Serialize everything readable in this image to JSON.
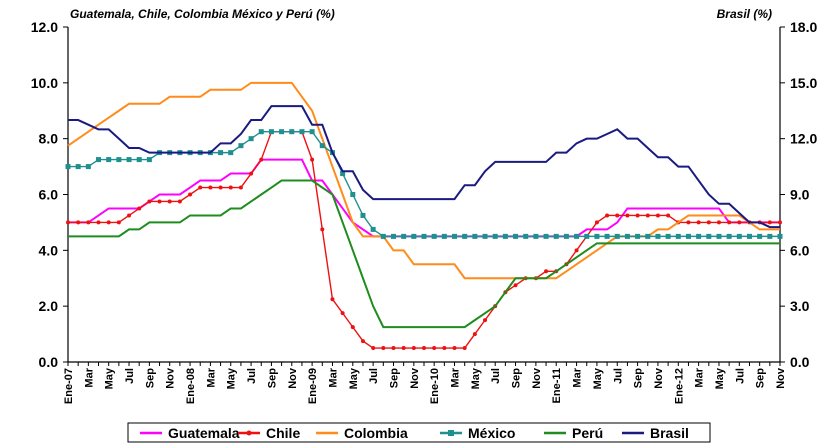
{
  "chart_data": {
    "type": "line",
    "title": "Guatemala, Chile, Colombia México y Perú (%)",
    "y2_title": "Brasil (%)",
    "categories": [
      "Ene-07",
      null,
      "Mar",
      null,
      "May",
      null,
      "Jul",
      null,
      "Sep",
      null,
      "Nov",
      null,
      "Ene-08",
      null,
      "Mar",
      null,
      "May",
      null,
      "Jul",
      null,
      "Sep",
      null,
      "Nov",
      null,
      "Ene-09",
      null,
      "Mar",
      null,
      "May",
      null,
      "Jul",
      null,
      "Sep",
      null,
      "Nov",
      null,
      "Ene-10",
      null,
      "Mar",
      null,
      "May",
      null,
      "Jul",
      null,
      "Sep",
      null,
      "Nov",
      null,
      "Ene-11",
      null,
      "Mar",
      null,
      "May",
      null,
      "Jul",
      null,
      "Sep",
      null,
      "Nov",
      null,
      "Ene-12",
      null,
      "Mar",
      null,
      "May",
      null,
      "Jul",
      null,
      "Sep",
      null,
      "Nov"
    ],
    "ylim": [
      0,
      12
    ],
    "yticks": [
      {
        "value": 0,
        "label": "0.0"
      },
      {
        "value": 2,
        "label": "2.0"
      },
      {
        "value": 4,
        "label": "4.0"
      },
      {
        "value": 6,
        "label": "6.0"
      },
      {
        "value": 8,
        "label": "8.0"
      },
      {
        "value": 10,
        "label": "10.0"
      },
      {
        "value": 12,
        "label": "12.0"
      }
    ],
    "y2lim": [
      0,
      18
    ],
    "y2ticks": [
      {
        "value": 0,
        "label": "0.0"
      },
      {
        "value": 3,
        "label": "3.0"
      },
      {
        "value": 6,
        "label": "6.0"
      },
      {
        "value": 9,
        "label": "9.0"
      },
      {
        "value": 12,
        "label": "12.0"
      },
      {
        "value": 15,
        "label": "15.0"
      },
      {
        "value": 18,
        "label": "18.0"
      }
    ],
    "grid": false,
    "legend": "bottom",
    "series": [
      {
        "name": "Guatemala",
        "color": "#ff00ff",
        "marker": "none",
        "values": [
          5.0,
          5.0,
          5.0,
          5.25,
          5.5,
          5.5,
          5.5,
          5.5,
          5.75,
          6.0,
          6.0,
          6.0,
          6.25,
          6.5,
          6.5,
          6.5,
          6.75,
          6.75,
          6.75,
          7.25,
          7.25,
          7.25,
          7.25,
          7.25,
          6.5,
          6.5,
          6.0,
          5.5,
          5.0,
          4.75,
          4.5,
          4.5,
          4.5,
          4.5,
          4.5,
          4.5,
          4.5,
          4.5,
          4.5,
          4.5,
          4.5,
          4.5,
          4.5,
          4.5,
          4.5,
          4.5,
          4.5,
          4.5,
          4.5,
          4.5,
          4.5,
          4.75,
          4.75,
          4.75,
          5.0,
          5.5,
          5.5,
          5.5,
          5.5,
          5.5,
          5.5,
          5.5,
          5.5,
          5.5,
          5.5,
          5.0,
          5.0,
          5.0,
          5.0,
          5.0,
          5.0
        ]
      },
      {
        "name": "Chile",
        "color": "#ee1111",
        "marker": "circle",
        "values": [
          5.0,
          5.0,
          5.0,
          5.0,
          5.0,
          5.0,
          5.25,
          5.5,
          5.75,
          5.75,
          5.75,
          5.75,
          6.0,
          6.25,
          6.25,
          6.25,
          6.25,
          6.25,
          6.75,
          7.25,
          8.25,
          8.25,
          8.25,
          8.25,
          7.25,
          4.75,
          2.25,
          1.75,
          1.25,
          0.75,
          0.5,
          0.5,
          0.5,
          0.5,
          0.5,
          0.5,
          0.5,
          0.5,
          0.5,
          0.5,
          1.0,
          1.5,
          2.0,
          2.5,
          2.75,
          3.0,
          3.0,
          3.25,
          3.25,
          3.5,
          4.0,
          4.5,
          5.0,
          5.25,
          5.25,
          5.25,
          5.25,
          5.25,
          5.25,
          5.25,
          5.0,
          5.0,
          5.0,
          5.0,
          5.0,
          5.0,
          5.0,
          5.0,
          5.0,
          5.0,
          5.0
        ]
      },
      {
        "name": "Colombia",
        "color": "#ff8c1a",
        "marker": "none",
        "values": [
          7.75,
          8.0,
          8.25,
          8.5,
          8.75,
          9.0,
          9.25,
          9.25,
          9.25,
          9.25,
          9.5,
          9.5,
          9.5,
          9.5,
          9.75,
          9.75,
          9.75,
          9.75,
          10.0,
          10.0,
          10.0,
          10.0,
          10.0,
          9.5,
          9.0,
          8.0,
          7.0,
          6.0,
          5.0,
          4.5,
          4.5,
          4.5,
          4.0,
          4.0,
          3.5,
          3.5,
          3.5,
          3.5,
          3.5,
          3.0,
          3.0,
          3.0,
          3.0,
          3.0,
          3.0,
          3.0,
          3.0,
          3.0,
          3.0,
          3.25,
          3.5,
          3.75,
          4.0,
          4.25,
          4.5,
          4.5,
          4.5,
          4.5,
          4.75,
          4.75,
          5.0,
          5.25,
          5.25,
          5.25,
          5.25,
          5.25,
          5.25,
          5.0,
          4.75,
          4.75,
          4.75
        ]
      },
      {
        "name": "México",
        "color": "#1f8f8f",
        "marker": "square",
        "values": [
          7.0,
          7.0,
          7.0,
          7.25,
          7.25,
          7.25,
          7.25,
          7.25,
          7.25,
          7.5,
          7.5,
          7.5,
          7.5,
          7.5,
          7.5,
          7.5,
          7.5,
          7.75,
          8.0,
          8.25,
          8.25,
          8.25,
          8.25,
          8.25,
          8.25,
          7.75,
          7.5,
          6.75,
          6.0,
          5.25,
          4.75,
          4.5,
          4.5,
          4.5,
          4.5,
          4.5,
          4.5,
          4.5,
          4.5,
          4.5,
          4.5,
          4.5,
          4.5,
          4.5,
          4.5,
          4.5,
          4.5,
          4.5,
          4.5,
          4.5,
          4.5,
          4.5,
          4.5,
          4.5,
          4.5,
          4.5,
          4.5,
          4.5,
          4.5,
          4.5,
          4.5,
          4.5,
          4.5,
          4.5,
          4.5,
          4.5,
          4.5,
          4.5,
          4.5,
          4.5,
          4.5
        ]
      },
      {
        "name": "Perú",
        "color": "#1e8c1e",
        "marker": "none",
        "values": [
          4.5,
          4.5,
          4.5,
          4.5,
          4.5,
          4.5,
          4.75,
          4.75,
          5.0,
          5.0,
          5.0,
          5.0,
          5.25,
          5.25,
          5.25,
          5.25,
          5.5,
          5.5,
          5.75,
          6.0,
          6.25,
          6.5,
          6.5,
          6.5,
          6.5,
          6.25,
          6.0,
          5.0,
          4.0,
          3.0,
          2.0,
          1.25,
          1.25,
          1.25,
          1.25,
          1.25,
          1.25,
          1.25,
          1.25,
          1.25,
          1.5,
          1.75,
          2.0,
          2.5,
          3.0,
          3.0,
          3.0,
          3.0,
          3.25,
          3.5,
          3.75,
          4.0,
          4.25,
          4.25,
          4.25,
          4.25,
          4.25,
          4.25,
          4.25,
          4.25,
          4.25,
          4.25,
          4.25,
          4.25,
          4.25,
          4.25,
          4.25,
          4.25,
          4.25,
          4.25,
          4.25
        ]
      },
      {
        "name": "Brasil",
        "color": "#1a1a80",
        "marker": "none",
        "axis": "y2",
        "values": [
          13.0,
          13.0,
          12.75,
          12.5,
          12.5,
          12.0,
          11.5,
          11.5,
          11.25,
          11.25,
          11.25,
          11.25,
          11.25,
          11.25,
          11.25,
          11.75,
          11.75,
          12.25,
          13.0,
          13.0,
          13.75,
          13.75,
          13.75,
          13.75,
          12.75,
          12.75,
          11.25,
          10.25,
          10.25,
          9.25,
          8.75,
          8.75,
          8.75,
          8.75,
          8.75,
          8.75,
          8.75,
          8.75,
          8.75,
          9.5,
          9.5,
          10.25,
          10.75,
          10.75,
          10.75,
          10.75,
          10.75,
          10.75,
          11.25,
          11.25,
          11.75,
          12.0,
          12.0,
          12.25,
          12.5,
          12.0,
          12.0,
          11.5,
          11.0,
          11.0,
          10.5,
          10.5,
          9.75,
          9.0,
          8.5,
          8.5,
          8.0,
          7.5,
          7.5,
          7.25,
          7.25
        ]
      }
    ]
  }
}
